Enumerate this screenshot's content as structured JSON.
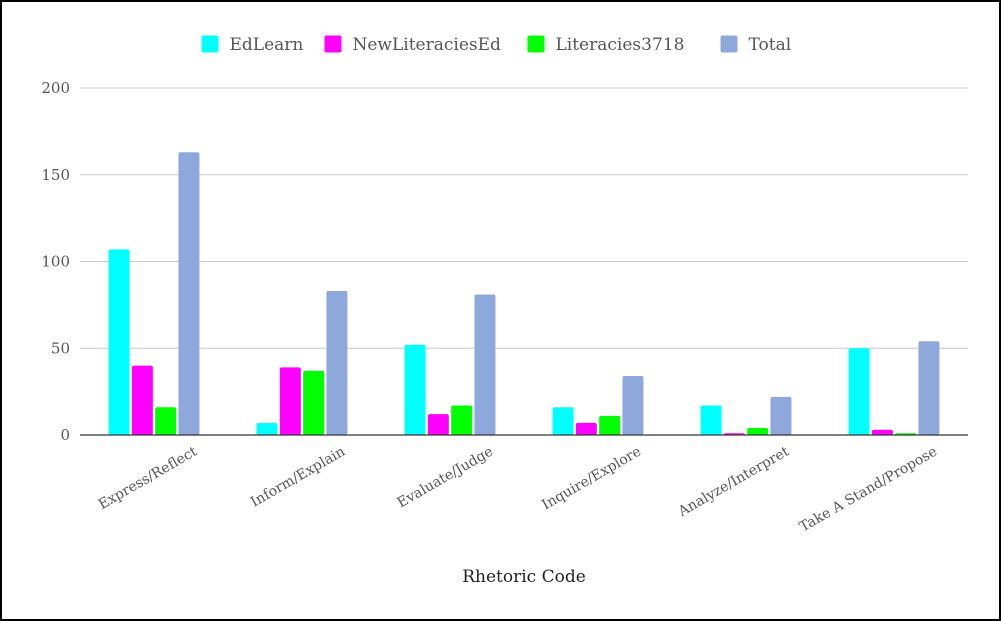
{
  "chart_data": {
    "type": "bar",
    "title": "",
    "xlabel": "Rhetoric Code",
    "ylabel": "",
    "ylim": [
      0,
      200
    ],
    "yticks": [
      0,
      50,
      100,
      150,
      200
    ],
    "grid": true,
    "legend_position": "top",
    "categories": [
      "Express/Reflect",
      "Inform/Explain",
      "Evaluate/Judge",
      "Inquire/Explore",
      "Analyze/Interpret",
      "Take A Stand/Propose"
    ],
    "series": [
      {
        "name": "EdLearn",
        "color": "#00ffff",
        "values": [
          107,
          7,
          52,
          16,
          17,
          50
        ]
      },
      {
        "name": "NewLiteraciesEd",
        "color": "#ff00ff",
        "values": [
          40,
          39,
          12,
          7,
          1,
          3
        ]
      },
      {
        "name": "Literacies3718",
        "color": "#00ff00",
        "values": [
          16,
          37,
          17,
          11,
          4,
          1
        ]
      },
      {
        "name": "Total",
        "color": "#8fa8dc",
        "values": [
          163,
          83,
          81,
          34,
          22,
          54
        ]
      }
    ]
  }
}
